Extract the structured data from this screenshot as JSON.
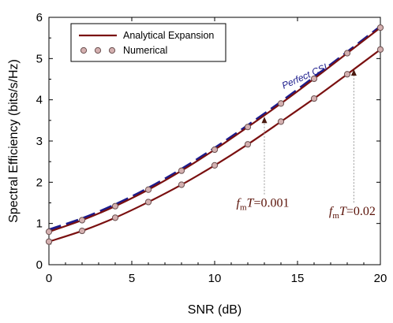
{
  "chart_data": {
    "type": "line",
    "title": "",
    "xlabel": "SNR (dB)",
    "ylabel": "Spectral Efficiency (bits/s/Hz)",
    "xlim": [
      0,
      20
    ],
    "ylim": [
      0,
      6
    ],
    "xticks": [
      "0",
      "5",
      "10",
      "15",
      "20"
    ],
    "yticks": [
      "0",
      "1",
      "2",
      "3",
      "4",
      "5",
      "6"
    ],
    "grid": false,
    "legend": {
      "placement": "top-left",
      "entries": [
        "Analytical Expansion",
        "Numerical"
      ]
    },
    "x": [
      0,
      2,
      4,
      6,
      8,
      10,
      12,
      14,
      16,
      18,
      20
    ],
    "series": [
      {
        "name": "Perfect CSI",
        "style": "dashed",
        "color": "#1c1c8c",
        "values": [
          0.85,
          1.12,
          1.46,
          1.86,
          2.32,
          2.83,
          3.38,
          3.95,
          4.55,
          5.16,
          5.78
        ]
      },
      {
        "name": "Analytical Expansion (fmT=0.001)",
        "style": "solid",
        "color": "#7a1010",
        "values": [
          0.8,
          1.08,
          1.42,
          1.82,
          2.28,
          2.79,
          3.34,
          3.91,
          4.51,
          5.13,
          5.75
        ]
      },
      {
        "name": "Numerical (fmT=0.001)",
        "style": "markers",
        "color": "#d4b0b0",
        "values": [
          0.8,
          1.08,
          1.42,
          1.82,
          2.28,
          2.79,
          3.34,
          3.91,
          4.51,
          5.13,
          5.75
        ]
      },
      {
        "name": "Analytical Expansion (fmT=0.02)",
        "style": "solid",
        "color": "#7a1010",
        "values": [
          0.56,
          0.82,
          1.14,
          1.52,
          1.94,
          2.41,
          2.92,
          3.47,
          4.03,
          4.62,
          5.22
        ]
      },
      {
        "name": "Numerical (fmT=0.02)",
        "style": "markers",
        "color": "#d4b0b0",
        "values": [
          0.56,
          0.82,
          1.14,
          1.52,
          1.94,
          2.41,
          2.92,
          3.47,
          4.03,
          4.62,
          5.22
        ]
      }
    ],
    "annotations": [
      {
        "text": "Perfect CSI",
        "x": 15.5,
        "y": 4.5
      },
      {
        "label": "f",
        "sub": "m",
        "tail": "T=0.001",
        "x": 13.0,
        "y": 1.4,
        "arrow_to_y": 3.55
      },
      {
        "label": "f",
        "sub": "m",
        "tail": "T=0.02",
        "x": 18.4,
        "y": 1.2,
        "arrow_to_y": 4.7
      }
    ]
  }
}
